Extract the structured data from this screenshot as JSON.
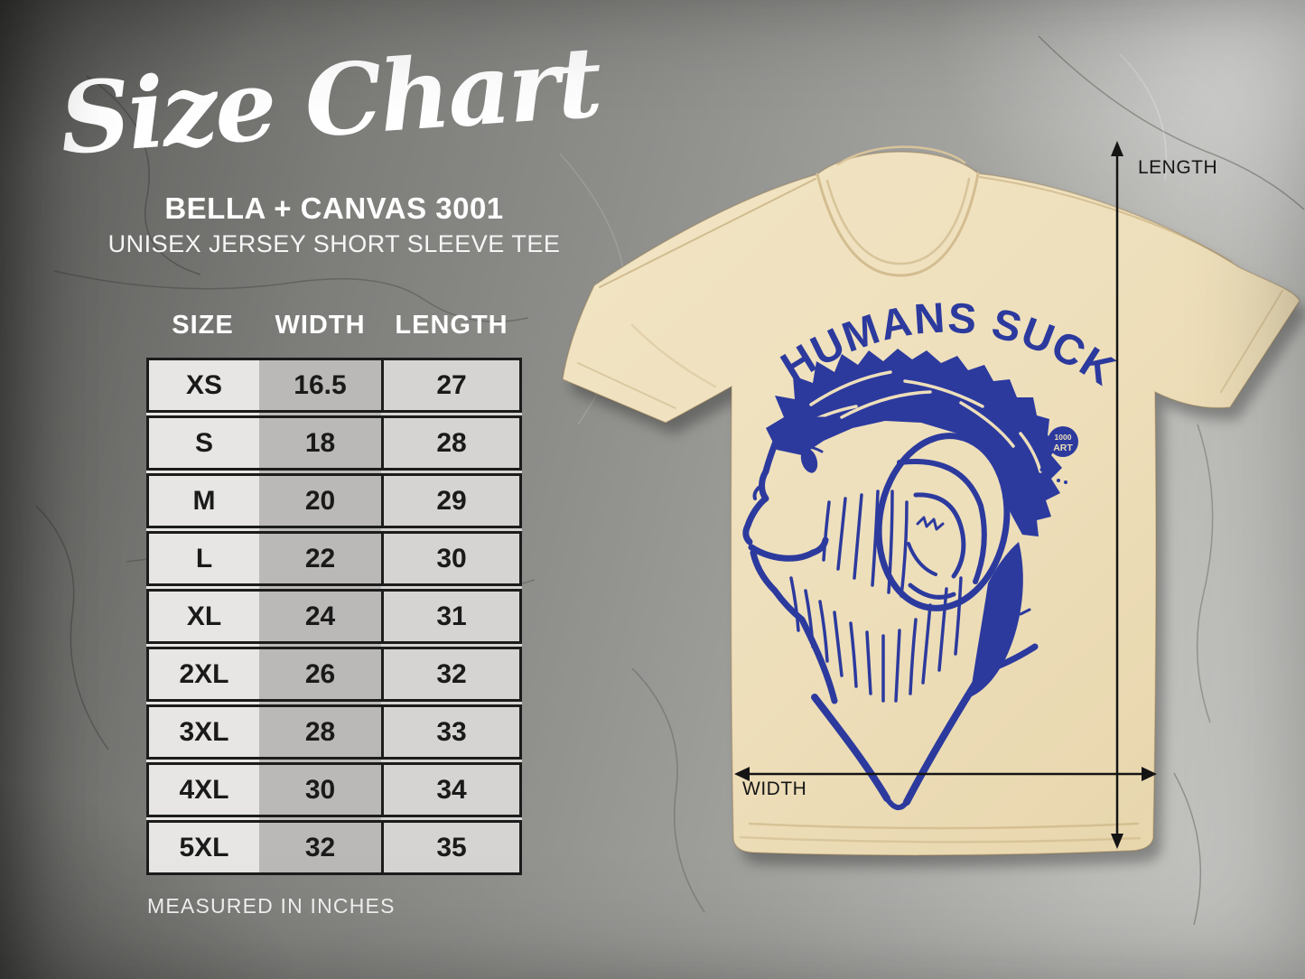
{
  "header": {
    "title": "Size Chart",
    "brand": "BELLA + CANVAS 3001",
    "product": "UNISEX JERSEY SHORT SLEEVE TEE"
  },
  "size_table": {
    "columns": [
      "SIZE",
      "WIDTH",
      "LENGTH"
    ],
    "rows": [
      {
        "size": "XS",
        "width": "16.5",
        "length": "27"
      },
      {
        "size": "S",
        "width": "18",
        "length": "28"
      },
      {
        "size": "M",
        "width": "20",
        "length": "29"
      },
      {
        "size": "L",
        "width": "22",
        "length": "30"
      },
      {
        "size": "XL",
        "width": "24",
        "length": "31"
      },
      {
        "size": "2XL",
        "width": "26",
        "length": "32"
      },
      {
        "size": "3XL",
        "width": "28",
        "length": "33"
      },
      {
        "size": "4XL",
        "width": "30",
        "length": "34"
      },
      {
        "size": "5XL",
        "width": "32",
        "length": "35"
      }
    ],
    "footnote": "MEASURED IN INCHES"
  },
  "shirt": {
    "design_text": "HUMANS SUCK",
    "badge_line1": "1000",
    "badge_line2": "ART",
    "shirt_color": "#eedfbb",
    "design_color": "#2c3a9e"
  },
  "measurements": {
    "length_label": "LENGTH",
    "width_label": "WIDTH"
  },
  "chart_data": {
    "type": "table",
    "title": "Size Chart — BELLA + CANVAS 3001 Unisex Jersey Short Sleeve Tee",
    "columns": [
      "SIZE",
      "WIDTH",
      "LENGTH"
    ],
    "units": "inches",
    "rows": [
      [
        "XS",
        16.5,
        27
      ],
      [
        "S",
        18,
        28
      ],
      [
        "M",
        20,
        29
      ],
      [
        "L",
        22,
        30
      ],
      [
        "XL",
        24,
        31
      ],
      [
        "2XL",
        26,
        32
      ],
      [
        "3XL",
        28,
        33
      ],
      [
        "4XL",
        30,
        34
      ],
      [
        "5XL",
        32,
        35
      ]
    ]
  }
}
